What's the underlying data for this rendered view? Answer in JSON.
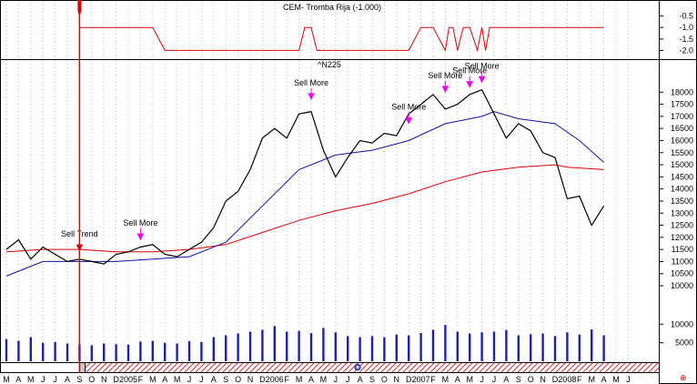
{
  "chart_data": [
    {
      "type": "line",
      "title": "CEM- Tromba Rija  (-1.000)",
      "ylim": [
        -2.3,
        0
      ],
      "y_ticks": [
        "-0.5",
        "-1.0",
        "-1.5",
        "-2.0"
      ],
      "y_tick_values": [
        -0.5,
        -1.0,
        -1.5,
        -2.0
      ],
      "series": [
        {
          "color": "#dd0000",
          "x": [
            "2004-09",
            "2004-10",
            "2005-03",
            "2005-04",
            "2006-03",
            "2006-03-15",
            "2006-04",
            "2006-04-15",
            "2006-05",
            "2006-12",
            "2007-01",
            "2007-02",
            "2007-03",
            "2007-03-10",
            "2007-03-20",
            "2007-04",
            "2007-04-15",
            "2007-05",
            "2007-05-20",
            "2007-06",
            "2007-06-10",
            "2007-06-20",
            "2007-07",
            "2008-04"
          ],
          "values": [
            -1,
            -1,
            -1,
            -2,
            -2,
            -1,
            -1,
            -2,
            -2,
            -2,
            -1,
            -1,
            -2,
            -1,
            -1,
            -2,
            -1,
            -1,
            -2,
            -1,
            -2,
            -1,
            -1,
            -1
          ]
        }
      ]
    },
    {
      "type": "line",
      "title": "^N225",
      "ylim": [
        9400,
        18800
      ],
      "y_ticks": [
        "18000",
        "17500",
        "17000",
        "16500",
        "16000",
        "15500",
        "15000",
        "14500",
        "14000",
        "13500",
        "13000",
        "12500",
        "12000",
        "11500",
        "11000",
        "10500",
        "10000"
      ],
      "y_tick_values": [
        18000,
        17500,
        17000,
        16500,
        16000,
        15500,
        15000,
        14500,
        14000,
        13500,
        13000,
        12500,
        12000,
        11500,
        11000,
        10500,
        10000
      ],
      "series": [
        {
          "color": "#000000",
          "x": [
            "2004-03",
            "2004-04",
            "2004-05",
            "2004-06",
            "2004-07",
            "2004-08",
            "2004-09",
            "2004-10",
            "2004-11",
            "2004-12",
            "2005-01",
            "2005-02",
            "2005-03",
            "2005-04",
            "2005-05",
            "2005-06",
            "2005-07",
            "2005-08",
            "2005-09",
            "2005-10",
            "2005-11",
            "2005-12",
            "2006-01",
            "2006-02",
            "2006-03",
            "2006-04",
            "2006-05",
            "2006-06",
            "2006-07",
            "2006-08",
            "2006-09",
            "2006-10",
            "2006-11",
            "2006-12",
            "2007-01",
            "2007-02",
            "2007-03",
            "2007-04",
            "2007-05",
            "2007-06",
            "2007-07",
            "2007-08",
            "2007-09",
            "2007-10",
            "2007-11",
            "2007-12",
            "2008-01",
            "2008-02",
            "2008-03",
            "2008-04"
          ],
          "values": [
            11500,
            11900,
            11100,
            11600,
            11300,
            11000,
            11100,
            11000,
            10900,
            11300,
            11400,
            11600,
            11700,
            11300,
            11200,
            11500,
            11800,
            12400,
            13500,
            13900,
            14800,
            16100,
            16500,
            16100,
            17100,
            17200,
            15600,
            14500,
            15300,
            16000,
            15900,
            16300,
            16200,
            17100,
            17500,
            17900,
            17300,
            17500,
            17900,
            18100,
            17100,
            16100,
            16700,
            16400,
            15500,
            15300,
            13600,
            13700,
            12500,
            13300
          ]
        },
        {
          "color": "#1010a0",
          "x": [
            "2004-03",
            "2004-06",
            "2004-09",
            "2004-12",
            "2005-03",
            "2005-06",
            "2005-09",
            "2005-12",
            "2006-03",
            "2006-06",
            "2006-09",
            "2006-12",
            "2007-03",
            "2007-06",
            "2007-07",
            "2007-09",
            "2007-12",
            "2008-02",
            "2008-04"
          ],
          "values": [
            10400,
            11000,
            11000,
            11000,
            11100,
            11200,
            11800,
            13300,
            14800,
            15400,
            15600,
            16000,
            16700,
            17000,
            17200,
            16900,
            16700,
            16000,
            15100
          ]
        },
        {
          "color": "#dd0000",
          "x": [
            "2004-03",
            "2004-06",
            "2004-09",
            "2004-12",
            "2005-03",
            "2005-06",
            "2005-09",
            "2005-12",
            "2006-03",
            "2006-06",
            "2006-09",
            "2006-12",
            "2007-03",
            "2007-06",
            "2007-09",
            "2007-12",
            "2008-01",
            "2008-04"
          ],
          "values": [
            11400,
            11500,
            11500,
            11400,
            11400,
            11500,
            11700,
            12200,
            12700,
            13100,
            13400,
            13800,
            14300,
            14700,
            14900,
            15000,
            14900,
            14800
          ]
        }
      ],
      "annotations": [
        {
          "text": "Sell Trend",
          "x": "2004-09",
          "price": 11350
        },
        {
          "text": "Sell More",
          "x": "2005-02",
          "price": 11800
        },
        {
          "text": "Sell More",
          "x": "2006-04",
          "price": 17600
        },
        {
          "text": "Sell More",
          "x": "2006-12",
          "price": 16600
        },
        {
          "text": "Sell More",
          "x": "2007-03",
          "price": 17900
        },
        {
          "text": "Sell More",
          "x": "2007-05",
          "price": 18100
        },
        {
          "text": "Sell More",
          "x": "2007-06",
          "price": 18300
        }
      ]
    },
    {
      "type": "bar",
      "title": "",
      "ylim": [
        0,
        14000
      ],
      "y_ticks": [
        "10000",
        "5000"
      ],
      "y_tick_values": [
        10000,
        5000
      ],
      "x": [
        "2004-03",
        "2004-04",
        "2004-05",
        "2004-06",
        "2004-07",
        "2004-08",
        "2004-09",
        "2004-10",
        "2004-11",
        "2004-12",
        "2005-01",
        "2005-02",
        "2005-03",
        "2005-04",
        "2005-05",
        "2005-06",
        "2005-07",
        "2005-08",
        "2005-09",
        "2005-10",
        "2005-11",
        "2005-12",
        "2006-01",
        "2006-02",
        "2006-03",
        "2006-04",
        "2006-05",
        "2006-06",
        "2006-07",
        "2006-08",
        "2006-09",
        "2006-10",
        "2006-11",
        "2006-12",
        "2007-01",
        "2007-02",
        "2007-03",
        "2007-04",
        "2007-05",
        "2007-06",
        "2007-07",
        "2007-08",
        "2007-09",
        "2007-10",
        "2007-11",
        "2007-12",
        "2008-01",
        "2008-02",
        "2008-03",
        "2008-04"
      ],
      "values": [
        6000,
        5500,
        6500,
        5000,
        5200,
        4800,
        4600,
        4300,
        4800,
        4600,
        4500,
        5300,
        5500,
        5000,
        4800,
        5400,
        5200,
        6500,
        7000,
        7500,
        8000,
        8500,
        9500,
        8000,
        8200,
        7600,
        9000,
        7800,
        6800,
        6500,
        6800,
        6500,
        7200,
        7000,
        7600,
        8500,
        9800,
        8000,
        7500,
        7800,
        8000,
        8400,
        7000,
        7300,
        7500,
        6800,
        7800,
        7200,
        8600,
        7000
      ],
      "color": "#2020b0"
    }
  ],
  "x_axis": {
    "labels": [
      "M",
      "A",
      "M",
      "J",
      "J",
      "A",
      "S",
      "O",
      "N",
      "D",
      "2005",
      "F",
      "M",
      "A",
      "M",
      "J",
      "J",
      "A",
      "S",
      "O",
      "N",
      "D",
      "2006",
      "F",
      "M",
      "A",
      "M",
      "J",
      "J",
      "A",
      "S",
      "O",
      "N",
      "D",
      "2007",
      "F",
      "M",
      "A",
      "M",
      "J",
      "J",
      "A",
      "S",
      "O",
      "N",
      "D",
      "2008",
      "F",
      "M",
      "A",
      "M",
      "J"
    ],
    "start": "2004-03",
    "end": "2008-06"
  },
  "cursor": {
    "x": "2004-09"
  },
  "colors": {
    "price": "#000000",
    "ma_short": "#1010a0",
    "ma_long": "#dd0000",
    "indicator": "#dd0000",
    "volume": "#2020b0",
    "signal_arrow": "#ee00ee",
    "cursor": "#dd0000",
    "hatch": "#cc3333"
  },
  "icons": {
    "scroll_marker": "scroll-thumb-icon",
    "close": "close-icon"
  }
}
